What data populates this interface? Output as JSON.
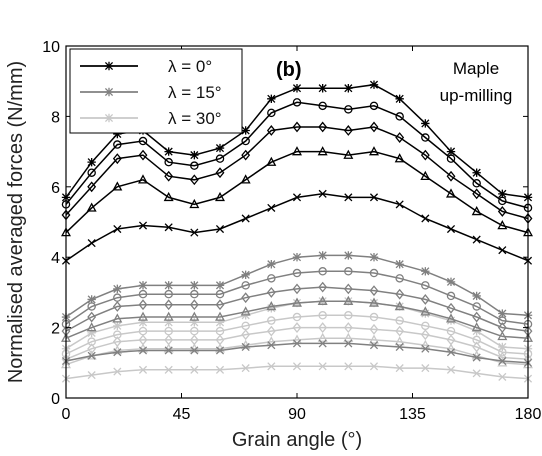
{
  "chart_data": {
    "type": "line",
    "title": "",
    "panel_label": "(b)",
    "annotation": [
      "Maple",
      "up-milling"
    ],
    "xlabel": "Grain angle (°)",
    "ylabel": "Normalised averaged forces (N/mm)",
    "xlim": [
      0,
      180
    ],
    "ylim": [
      0,
      10
    ],
    "xticks": [
      "0",
      "45",
      "90",
      "135",
      "180"
    ],
    "yticks": [
      "0",
      "2",
      "4",
      "6",
      "8",
      "10"
    ],
    "grid": false,
    "legend_position": "top-left",
    "legend": [
      {
        "label": "λ = 0°",
        "color": "#000000"
      },
      {
        "label": "λ = 15°",
        "color": "#808080"
      },
      {
        "label": "λ = 30°",
        "color": "#c8c8c8"
      }
    ],
    "x": [
      0,
      10,
      20,
      30,
      40,
      50,
      60,
      70,
      80,
      90,
      100,
      110,
      120,
      130,
      140,
      150,
      160,
      170,
      180
    ],
    "series": [
      {
        "group": 0,
        "marker": "star",
        "color": "#000000",
        "values": [
          5.7,
          6.7,
          7.5,
          7.6,
          7.0,
          6.9,
          7.1,
          7.6,
          8.5,
          8.8,
          8.8,
          8.8,
          8.9,
          8.5,
          7.8,
          7.0,
          6.4,
          5.8,
          5.7
        ]
      },
      {
        "group": 0,
        "marker": "circle",
        "color": "#000000",
        "values": [
          5.5,
          6.4,
          7.2,
          7.3,
          6.7,
          6.6,
          6.8,
          7.3,
          8.1,
          8.4,
          8.3,
          8.2,
          8.3,
          8.0,
          7.4,
          6.8,
          6.1,
          5.6,
          5.4
        ]
      },
      {
        "group": 0,
        "marker": "diamond",
        "color": "#000000",
        "values": [
          5.2,
          6.0,
          6.8,
          6.9,
          6.3,
          6.2,
          6.4,
          6.9,
          7.6,
          7.7,
          7.7,
          7.6,
          7.7,
          7.4,
          6.9,
          6.3,
          5.8,
          5.3,
          5.1
        ]
      },
      {
        "group": 0,
        "marker": "triangle",
        "color": "#000000",
        "values": [
          4.7,
          5.4,
          6.0,
          6.2,
          5.7,
          5.5,
          5.7,
          6.2,
          6.7,
          7.0,
          7.0,
          6.9,
          7.0,
          6.8,
          6.3,
          5.8,
          5.3,
          4.9,
          4.7
        ]
      },
      {
        "group": 0,
        "marker": "x",
        "color": "#000000",
        "values": [
          3.9,
          4.4,
          4.8,
          4.9,
          4.85,
          4.7,
          4.8,
          5.1,
          5.4,
          5.7,
          5.8,
          5.7,
          5.7,
          5.5,
          5.1,
          4.8,
          4.5,
          4.2,
          3.9
        ]
      },
      {
        "group": 1,
        "marker": "star",
        "color": "#808080",
        "values": [
          2.3,
          2.8,
          3.1,
          3.2,
          3.2,
          3.2,
          3.2,
          3.5,
          3.8,
          4.0,
          4.05,
          4.05,
          4.0,
          3.8,
          3.6,
          3.3,
          2.9,
          2.4,
          2.35
        ]
      },
      {
        "group": 1,
        "marker": "circle",
        "color": "#808080",
        "values": [
          2.1,
          2.6,
          2.85,
          2.95,
          2.95,
          2.95,
          2.95,
          3.2,
          3.4,
          3.55,
          3.6,
          3.6,
          3.55,
          3.4,
          3.2,
          2.9,
          2.6,
          2.2,
          2.1
        ]
      },
      {
        "group": 1,
        "marker": "diamond",
        "color": "#808080",
        "values": [
          1.9,
          2.3,
          2.6,
          2.65,
          2.65,
          2.65,
          2.65,
          2.85,
          3.0,
          3.1,
          3.15,
          3.1,
          3.05,
          2.95,
          2.8,
          2.55,
          2.3,
          2.0,
          1.9
        ]
      },
      {
        "group": 1,
        "marker": "triangle",
        "color": "#808080",
        "values": [
          1.7,
          2.0,
          2.25,
          2.3,
          2.3,
          2.3,
          2.3,
          2.45,
          2.6,
          2.7,
          2.75,
          2.75,
          2.7,
          2.6,
          2.45,
          2.25,
          2.0,
          1.75,
          1.7
        ]
      },
      {
        "group": 1,
        "marker": "x",
        "color": "#808080",
        "values": [
          1.05,
          1.2,
          1.3,
          1.35,
          1.35,
          1.35,
          1.35,
          1.45,
          1.5,
          1.55,
          1.55,
          1.55,
          1.5,
          1.45,
          1.4,
          1.3,
          1.15,
          1.05,
          1.0
        ]
      },
      {
        "group": 2,
        "marker": "star",
        "color": "#c8c8c8",
        "values": [
          1.4,
          1.85,
          2.05,
          2.15,
          2.15,
          2.15,
          2.15,
          2.35,
          2.55,
          2.7,
          2.75,
          2.75,
          2.7,
          2.6,
          2.4,
          2.2,
          1.9,
          1.45,
          1.4
        ]
      },
      {
        "group": 2,
        "marker": "circle",
        "color": "#c8c8c8",
        "values": [
          1.25,
          1.6,
          1.8,
          1.9,
          1.9,
          1.9,
          1.9,
          2.05,
          2.2,
          2.3,
          2.35,
          2.35,
          2.3,
          2.2,
          2.05,
          1.9,
          1.65,
          1.3,
          1.25
        ]
      },
      {
        "group": 2,
        "marker": "diamond",
        "color": "#c8c8c8",
        "values": [
          1.1,
          1.4,
          1.6,
          1.65,
          1.65,
          1.65,
          1.65,
          1.8,
          1.9,
          2.0,
          2.0,
          2.0,
          1.95,
          1.9,
          1.8,
          1.65,
          1.45,
          1.15,
          1.1
        ]
      },
      {
        "group": 2,
        "marker": "triangle",
        "color": "#c8c8c8",
        "values": [
          0.95,
          1.2,
          1.35,
          1.4,
          1.4,
          1.4,
          1.4,
          1.5,
          1.6,
          1.65,
          1.7,
          1.7,
          1.65,
          1.6,
          1.5,
          1.4,
          1.2,
          1.0,
          0.95
        ]
      },
      {
        "group": 2,
        "marker": "x",
        "color": "#c8c8c8",
        "values": [
          0.55,
          0.65,
          0.75,
          0.8,
          0.8,
          0.8,
          0.8,
          0.85,
          0.9,
          0.9,
          0.9,
          0.9,
          0.9,
          0.85,
          0.85,
          0.8,
          0.7,
          0.6,
          0.55
        ]
      }
    ]
  }
}
